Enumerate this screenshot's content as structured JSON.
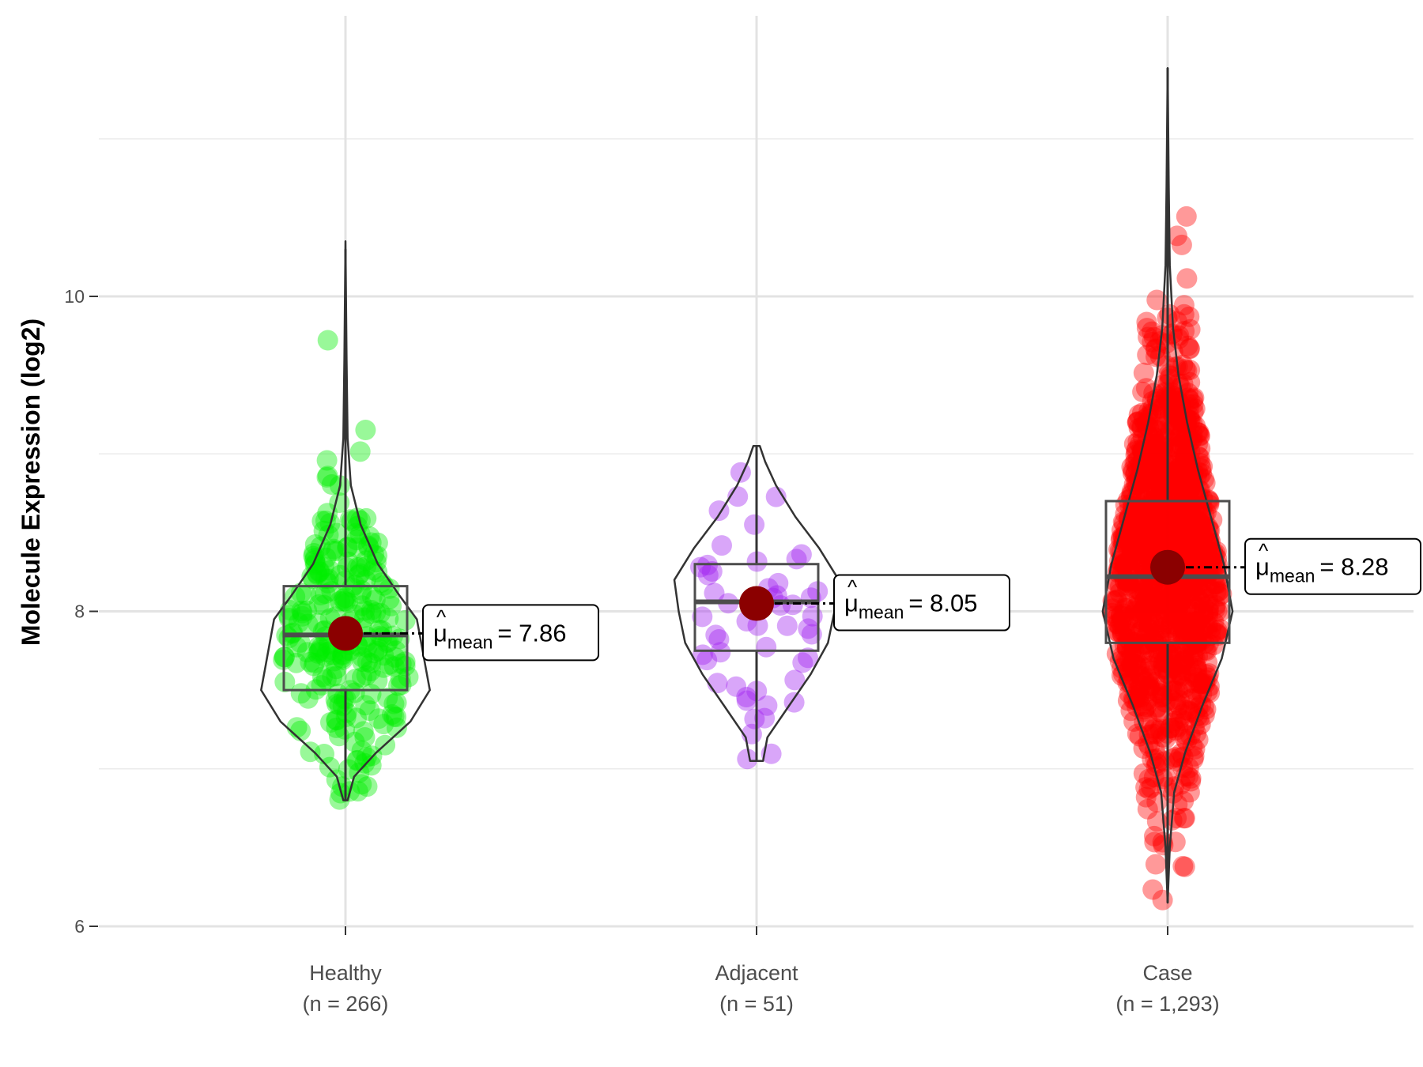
{
  "chart_data": {
    "type": "violin",
    "ylabel": "Molecule Expression (log2)",
    "xlabel": "",
    "ylim": [
      5.85,
      11.65
    ],
    "y_ticks": [
      6,
      8,
      10
    ],
    "grid": true,
    "mean_label": {
      "symbol": "μ",
      "subscript": "mean",
      "equals": "="
    },
    "groups": [
      {
        "category": "Healthy",
        "n_label": "(n = 266)",
        "color": "#00ee00",
        "mean": 7.86,
        "mean_text": "7.86",
        "box": {
          "q1": 7.5,
          "median": 7.85,
          "q3": 8.16,
          "whisker_low": 6.8,
          "whisker_high": 10.3
        },
        "violin": {
          "min": 6.8,
          "max": 10.35,
          "profile": [
            [
              6.8,
              0.02
            ],
            [
              6.95,
              0.08
            ],
            [
              7.1,
              0.28
            ],
            [
              7.3,
              0.6
            ],
            [
              7.5,
              0.78
            ],
            [
              7.65,
              0.74
            ],
            [
              7.8,
              0.7
            ],
            [
              7.95,
              0.66
            ],
            [
              8.1,
              0.5
            ],
            [
              8.3,
              0.3
            ],
            [
              8.55,
              0.14
            ],
            [
              8.8,
              0.05
            ],
            [
              9.1,
              0.02
            ],
            [
              9.6,
              0.01
            ],
            [
              10.35,
              0.0
            ]
          ]
        },
        "n_points": 266
      },
      {
        "category": "Adjacent",
        "n_label": "(n = 51)",
        "color": "#a020f0",
        "mean": 8.05,
        "mean_text": "8.05",
        "box": {
          "q1": 7.75,
          "median": 8.06,
          "q3": 8.3,
          "whisker_low": 7.05,
          "whisker_high": 9.05
        },
        "violin": {
          "min": 7.05,
          "max": 9.05,
          "profile": [
            [
              7.05,
              0.06
            ],
            [
              7.2,
              0.1
            ],
            [
              7.4,
              0.3
            ],
            [
              7.6,
              0.5
            ],
            [
              7.8,
              0.66
            ],
            [
              8.0,
              0.72
            ],
            [
              8.2,
              0.76
            ],
            [
              8.4,
              0.58
            ],
            [
              8.6,
              0.36
            ],
            [
              8.8,
              0.18
            ],
            [
              8.95,
              0.08
            ],
            [
              9.05,
              0.03
            ]
          ]
        },
        "n_points": 51
      },
      {
        "category": "Case",
        "n_label": "(n = 1,293)",
        "color": "#ff0000",
        "mean": 8.28,
        "mean_text": "8.28",
        "box": {
          "q1": 7.8,
          "median": 8.22,
          "q3": 8.7,
          "whisker_low": 6.15,
          "whisker_high": 11.45
        },
        "violin": {
          "min": 6.15,
          "max": 11.45,
          "profile": [
            [
              6.15,
              0.0
            ],
            [
              6.5,
              0.02
            ],
            [
              6.85,
              0.06
            ],
            [
              7.1,
              0.16
            ],
            [
              7.4,
              0.32
            ],
            [
              7.7,
              0.5
            ],
            [
              8.0,
              0.6
            ],
            [
              8.3,
              0.52
            ],
            [
              8.6,
              0.4
            ],
            [
              8.9,
              0.28
            ],
            [
              9.2,
              0.18
            ],
            [
              9.5,
              0.1
            ],
            [
              9.8,
              0.05
            ],
            [
              10.2,
              0.02
            ],
            [
              10.7,
              0.01
            ],
            [
              11.45,
              0.0
            ]
          ]
        },
        "n_points": 1293
      }
    ]
  }
}
